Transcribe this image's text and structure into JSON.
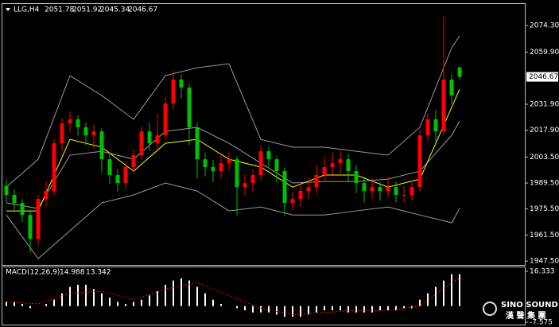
{
  "chart_data": [
    {
      "type": "candlestick",
      "title": "LLG,H4",
      "open": [
        1988.0,
        1983.1,
        1978.8,
        1972.3,
        1959.5,
        1980.9,
        1985.2,
        2010.9,
        2021.6,
        2023.8,
        2019.5,
        2015.2,
        2017.3,
        2002.3,
        1993.8,
        1989.5,
        1998.1,
        2004.5,
        2017.3,
        2010.9,
        2015.2,
        2032.3,
        2045.2,
        2040.9,
        2019.5,
        2002.3,
        1998.1,
        1995.9,
        2000.2,
        2002.3,
        1987.3,
        1989.5,
        1993.8,
        2006.6,
        2002.3,
        1995.9,
        1978.8,
        1980.9,
        1985.2,
        1987.3,
        1993.8,
        1998.1,
        2000.2,
        2002.3,
        1995.9,
        1989.5,
        1985.2,
        1987.3,
        1985.2,
        1987.3,
        1983.1,
        1983.1,
        1987.3,
        2015.2,
        2023.8,
        2017.3,
        2045.2,
        2051.78
      ],
      "high": [
        1991.5,
        1986.0,
        1981.0,
        1975.0,
        1983.0,
        1990.0,
        2013.0,
        2024.5,
        2028.0,
        2026.0,
        2022.0,
        2021.0,
        2019.0,
        2005.0,
        1997.0,
        2001.0,
        2008.0,
        2020.0,
        2022.0,
        2027.0,
        2036.0,
        2050.0,
        2048.0,
        2043.0,
        2022.0,
        2006.0,
        2002.0,
        2004.0,
        2006.0,
        2004.0,
        1994.0,
        1997.0,
        2010.0,
        2009.0,
        2004.0,
        1998.0,
        1985.0,
        1989.0,
        1992.0,
        1999.0,
        2003.0,
        2006.0,
        2007.0,
        2005.0,
        1999.0,
        1993.0,
        1992.0,
        1990.0,
        1993.0,
        1990.0,
        1988.0,
        1991.0,
        2018.0,
        2027.0,
        2029.0,
        2079.4,
        2048.0,
        2051.92
      ],
      "low": [
        1979.0,
        1975.0,
        1968.5,
        1952.0,
        1956.0,
        1977.0,
        1983.0,
        2007.0,
        2017.0,
        2015.0,
        2010.0,
        2008.0,
        1995.0,
        1989.0,
        1985.0,
        1986.0,
        1995.0,
        2002.0,
        2007.0,
        2008.0,
        2013.0,
        2029.0,
        2035.0,
        2010.0,
        1992.0,
        1993.0,
        1990.0,
        1992.0,
        1996.0,
        1972.0,
        1983.0,
        1985.0,
        1991.0,
        1998.0,
        1990.0,
        1972.0,
        1975.0,
        1977.0,
        1981.0,
        1984.0,
        1990.0,
        1994.0,
        1995.0,
        1990.0,
        1984.0,
        1979.0,
        1981.0,
        1980.0,
        1982.0,
        1979.0,
        1979.0,
        1980.0,
        1985.0,
        2012.0,
        2012.0,
        2015.0,
        2032.0,
        2045.34
      ],
      "close": [
        1983.1,
        1978.8,
        1972.3,
        1959.5,
        1980.9,
        1985.2,
        2010.9,
        2021.6,
        2023.8,
        2019.5,
        2015.2,
        2017.3,
        2002.3,
        1993.8,
        1989.5,
        1998.1,
        2004.5,
        2017.3,
        2010.9,
        2015.2,
        2032.3,
        2045.2,
        2040.9,
        2019.5,
        2002.3,
        1998.1,
        1995.9,
        2000.2,
        2002.3,
        1987.3,
        1989.5,
        1993.8,
        2006.6,
        2002.3,
        1995.9,
        1978.8,
        1980.9,
        1985.2,
        1987.3,
        1993.8,
        1998.1,
        2000.2,
        2002.3,
        1995.9,
        1989.5,
        1985.2,
        1987.3,
        1985.2,
        1987.3,
        1983.1,
        1983.1,
        1987.3,
        2015.2,
        2023.8,
        2017.3,
        2045.2,
        2036.6,
        2046.67
      ],
      "up_color": "#ff0000",
      "down_color": "#00c000",
      "series": [
        {
          "color": "#9a9a9a",
          "x": [
            0,
            4,
            8,
            12,
            16,
            20,
            24,
            28,
            32,
            36,
            40,
            44,
            48,
            52,
            56,
            57
          ],
          "values": [
            1987.3,
            2002.3,
            2047.3,
            2036.6,
            2023.8,
            2047.3,
            2051.6,
            2053.7,
            2013.0,
            2008.8,
            2008.8,
            2006.6,
            2004.5,
            2019.5,
            2062.3,
            2068.7
          ]
        },
        {
          "color": "#9a9a9a",
          "x": [
            0,
            4,
            8,
            12,
            16,
            20,
            24,
            28,
            32,
            36,
            40,
            44,
            48,
            52,
            56,
            57
          ],
          "values": [
            1978.8,
            1975.8,
            2004.5,
            2006.6,
            2002.3,
            2017.3,
            2019.5,
            2010.9,
            2000.2,
            1989.5,
            1990.3,
            1990.3,
            1991.6,
            1995.9,
            2015.2,
            2022.9
          ]
        },
        {
          "color": "#9a9a9a",
          "x": [
            0,
            4,
            8,
            12,
            16,
            20,
            24,
            28,
            32,
            36,
            40,
            44,
            48,
            52,
            56,
            57
          ],
          "values": [
            1972.3,
            1948.8,
            1963.8,
            1978.8,
            1983.1,
            1989.5,
            1985.2,
            1974.5,
            1976.6,
            1972.3,
            1972.3,
            1974.5,
            1976.6,
            1972.3,
            1968.1,
            1975.8
          ]
        },
        {
          "color": "#ffff00",
          "x": [
            0,
            4,
            8,
            12,
            16,
            20,
            24,
            28,
            32,
            36,
            40,
            44,
            48,
            52,
            56,
            57
          ],
          "values": [
            1974.5,
            1974.5,
            2013.0,
            2008.8,
            1995.9,
            2010.9,
            2013.0,
            2002.3,
            1998.1,
            1987.3,
            1993.8,
            1993.8,
            1987.3,
            1991.6,
            2030.2,
            2040.0
          ]
        }
      ],
      "ylim": [
        1945.4,
        2085.9
      ],
      "yticks": [
        {
          "value": 2074.3,
          "label": "2074.30"
        },
        {
          "value": 2059.9,
          "label": "2059.90"
        },
        {
          "value": 2031.9,
          "label": "2031.90"
        },
        {
          "value": 2017.9,
          "label": "2017.90"
        },
        {
          "value": 2003.5,
          "label": "2003.50"
        },
        {
          "value": 1989.5,
          "label": "1989.50"
        },
        {
          "value": 1975.5,
          "label": "1975.50"
        },
        {
          "value": 1961.5,
          "label": "1961.50"
        },
        {
          "value": 1947.5,
          "label": "1947.50"
        }
      ]
    },
    {
      "type": "macd",
      "title": "MACD(12,26,9)",
      "values": [
        2,
        2,
        1,
        -1,
        0,
        1,
        3,
        6,
        9,
        10,
        10,
        8,
        6,
        4,
        2,
        1,
        2,
        3,
        5,
        7,
        10,
        12,
        13,
        12,
        9,
        6,
        3,
        1,
        0,
        -1,
        -2,
        -3,
        -3,
        -3,
        -4,
        -5,
        -5,
        -5,
        -4,
        -3,
        -2,
        -2,
        -2,
        -3,
        -3,
        -3,
        -3,
        -2,
        -2,
        -2,
        -1,
        -1,
        3,
        6,
        9,
        12,
        15,
        14.988
      ],
      "color": "#ffffff",
      "series": [
        {
          "color": "#ff0000",
          "x": [
            0,
            4,
            8,
            12,
            16,
            20,
            24,
            28,
            32,
            36,
            40,
            44,
            48,
            52,
            56,
            57
          ],
          "values": [
            2,
            1,
            6,
            7,
            3,
            8,
            11,
            5,
            -1,
            -4,
            -3,
            -2,
            -2,
            0,
            11,
            13.342
          ]
        }
      ],
      "ylim": [
        -7.575,
        16.333
      ],
      "yticks": [
        16.333,
        -7.575
      ]
    }
  ],
  "logo": {
    "name": "SINO SOUND",
    "subtitle": "漢 聲 集 團"
  }
}
